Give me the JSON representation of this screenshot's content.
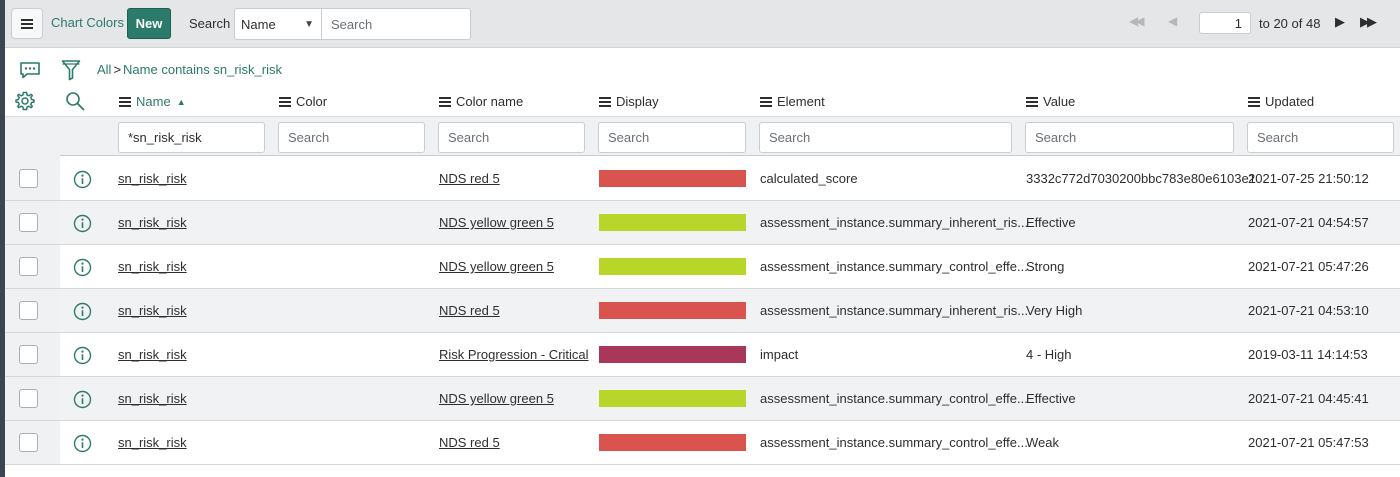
{
  "header": {
    "title": "Chart Colors",
    "new_label": "New",
    "search_label": "Search",
    "search_field": "Name",
    "search_placeholder": "Search"
  },
  "pager": {
    "page_input": "1",
    "range_text": "to 20 of 48"
  },
  "breadcrumb": {
    "all": "All",
    "separator": ">",
    "condition": "Name contains sn_risk_risk"
  },
  "columns": {
    "name": "Name",
    "color": "Color",
    "color_name": "Color name",
    "display": "Display",
    "element": "Element",
    "value": "Value",
    "updated": "Updated"
  },
  "filters": {
    "name_value": "*sn_risk_risk",
    "placeholder": "Search"
  },
  "rows": [
    {
      "name": "sn_risk_risk",
      "color": "",
      "color_name": "NDS red 5",
      "display_color": "#d9534f",
      "element": "calculated_score",
      "value": "3332c772d7030200bbc783e80e6103e1",
      "updated": "2021-07-25 21:50:12"
    },
    {
      "name": "sn_risk_risk",
      "color": "",
      "color_name": "NDS yellow green 5",
      "display_color": "#b8d629",
      "element": "assessment_instance.summary_inherent_ris...",
      "value": "Effective",
      "updated": "2021-07-21 04:54:57"
    },
    {
      "name": "sn_risk_risk",
      "color": "",
      "color_name": "NDS yellow green 5",
      "display_color": "#b8d629",
      "element": "assessment_instance.summary_control_effe...",
      "value": "Strong",
      "updated": "2021-07-21 05:47:26"
    },
    {
      "name": "sn_risk_risk",
      "color": "",
      "color_name": "NDS red 5",
      "display_color": "#d9534f",
      "element": "assessment_instance.summary_inherent_ris...",
      "value": "Very High",
      "updated": "2021-07-21 04:53:10"
    },
    {
      "name": "sn_risk_risk",
      "color": "",
      "color_name": "Risk Progression - Critical",
      "display_color": "#a8375a",
      "element": "impact",
      "value": "4 - High",
      "updated": "2019-03-11 14:14:53"
    },
    {
      "name": "sn_risk_risk",
      "color": "",
      "color_name": "NDS yellow green 5",
      "display_color": "#b8d629",
      "element": "assessment_instance.summary_control_effe...",
      "value": "Effective",
      "updated": "2021-07-21 04:45:41"
    },
    {
      "name": "sn_risk_risk",
      "color": "",
      "color_name": "NDS red 5",
      "display_color": "#d9534f",
      "element": "assessment_instance.summary_control_effe...",
      "value": "Weak",
      "updated": "2021-07-21 05:47:53"
    }
  ],
  "colors": {
    "accent": "#2c7a6b",
    "new_button": "#2b7b6a",
    "header_bg": "#e4e6e7"
  }
}
